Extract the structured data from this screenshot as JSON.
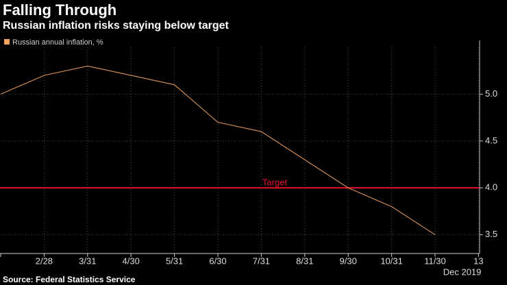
{
  "chart_data": {
    "type": "line",
    "title": "Falling Through",
    "subtitle": "Russian inflation risks staying below target",
    "source": "Source: Federal Statistics Service",
    "categories": [
      null,
      "2/28",
      "3/31",
      "4/30",
      "5/31",
      "6/30",
      "7/31",
      "8/31",
      "9/30",
      "10/31",
      "11/30",
      "13"
    ],
    "x_sublabel": "Dec 2019",
    "series": [
      {
        "name": "Russian annual inflation, %",
        "color": "#f4a460",
        "values": [
          5.0,
          5.2,
          5.3,
          5.2,
          5.1,
          4.7,
          4.6,
          4.3,
          4.0,
          3.8,
          3.5,
          null
        ]
      }
    ],
    "ylim": [
      3.3,
      5.5
    ],
    "yticks": [
      {
        "value": 3.5,
        "label": "3.5"
      },
      {
        "value": 4.0,
        "label": "4.0"
      },
      {
        "value": 4.5,
        "label": "4.5"
      },
      {
        "value": 5.0,
        "label": "5.0"
      }
    ],
    "target": {
      "label": "Target",
      "value": 4.0,
      "color": "#e8112d"
    },
    "grid": true
  }
}
